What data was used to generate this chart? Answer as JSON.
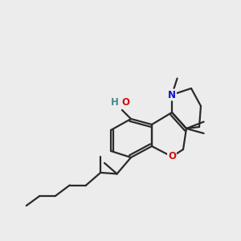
{
  "background_color": "#ececec",
  "bond_color": "#2a2a2a",
  "bond_lw": 1.6,
  "O_color": "#cc1111",
  "N_color": "#1111cc",
  "OH_H_color": "#4a8888",
  "figsize": [
    3.0,
    3.0
  ],
  "dpi": 100,
  "xlim": [
    0,
    10
  ],
  "ylim": [
    0,
    10
  ]
}
